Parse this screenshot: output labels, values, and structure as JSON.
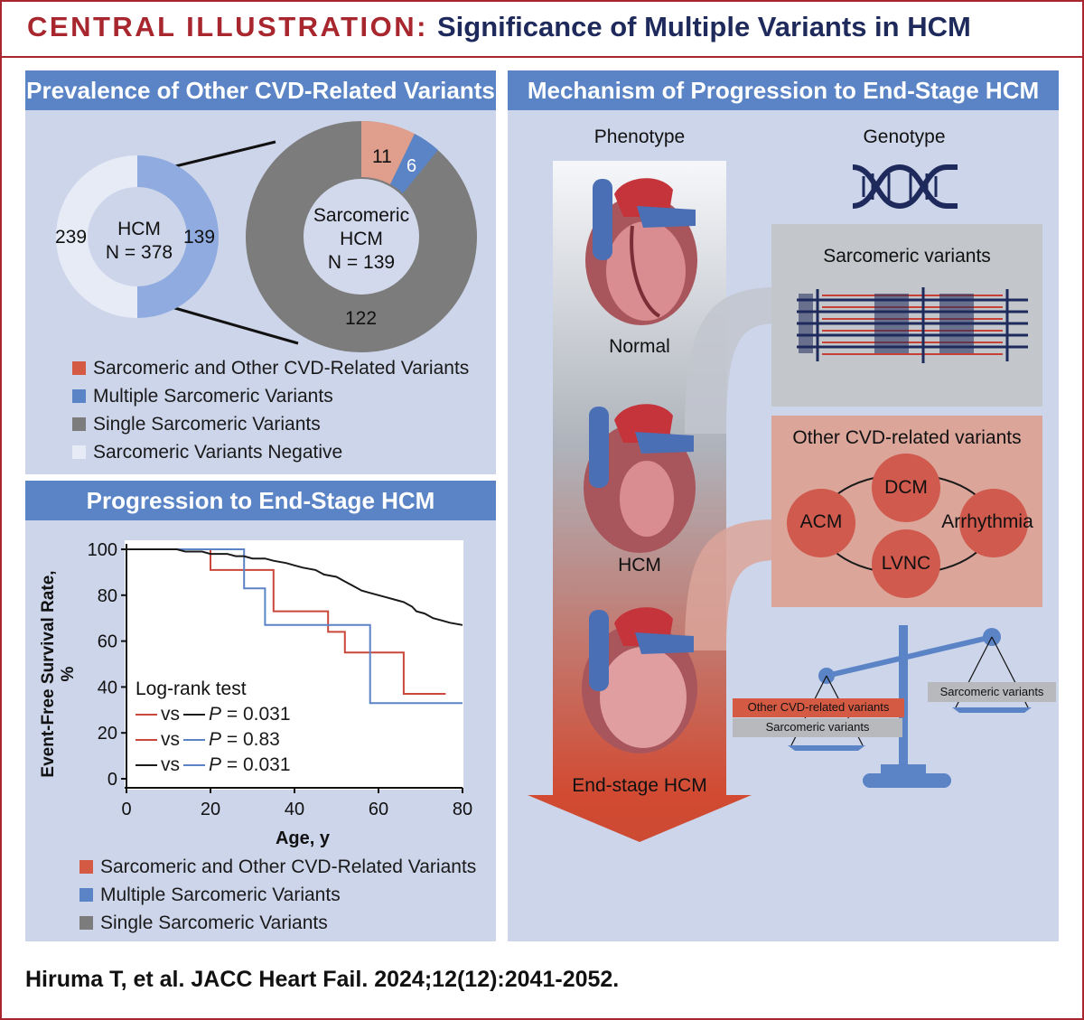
{
  "header": {
    "prefix": "CENTRAL ILLUSTRATION:",
    "title": "Significance of Multiple Variants in HCM"
  },
  "prevalence": {
    "title": "Prevalence of Other CVD-Related Variants",
    "outer_ring": {
      "center_line1": "HCM",
      "center_line2": "N = 378",
      "left_value": "239",
      "right_value": "139"
    },
    "inner_ring": {
      "center_line1": "Sarcomeric",
      "center_line2": "HCM",
      "center_line3": "N = 139",
      "value_a": "11",
      "value_b": "6",
      "value_c": "122"
    },
    "legend": [
      {
        "label": "Sarcomeric and Other CVD-Related Variants",
        "color": "#d45a43"
      },
      {
        "label": "Multiple Sarcomeric Variants",
        "color": "#5b84c6"
      },
      {
        "label": "Single Sarcomeric Variants",
        "color": "#7c7c7c"
      },
      {
        "label": "Sarcomeric Variants Negative",
        "color": "#e6ebf6"
      }
    ]
  },
  "progression": {
    "title": "Progression to End-Stage HCM",
    "ylabel": "Event-Free Survival Rate, %",
    "xlabel": "Age, y",
    "yticks": [
      "100",
      "80",
      "60",
      "40",
      "20",
      "0"
    ],
    "xticks": [
      "0",
      "20",
      "40",
      "60",
      "80"
    ],
    "test_title": "Log-rank test",
    "tests": [
      {
        "vs": "vs",
        "p_label": "P",
        "p_value": "= 0.031"
      },
      {
        "vs": "vs",
        "p_label": "P",
        "p_value": "= 0.83"
      },
      {
        "vs": "vs",
        "p_label": "P",
        "p_value": "= 0.031"
      }
    ],
    "legend": [
      {
        "label": "Sarcomeric and Other CVD-Related Variants",
        "color": "#d45a43"
      },
      {
        "label": "Multiple Sarcomeric Variants",
        "color": "#5b84c6"
      },
      {
        "label": "Single Sarcomeric Variants",
        "color": "#7c7c7c"
      }
    ]
  },
  "chart_data": {
    "type": "line",
    "xlabel": "Age, y",
    "ylabel": "Event-Free Survival Rate, %",
    "xlim": [
      0,
      80
    ],
    "ylim": [
      0,
      100
    ],
    "grid": false,
    "series": [
      {
        "name": "Sarcomeric and Other CVD-Related Variants",
        "color": "#c9473b",
        "points": [
          [
            0,
            100
          ],
          [
            20,
            100
          ],
          [
            20,
            91
          ],
          [
            35,
            91
          ],
          [
            35,
            73
          ],
          [
            48,
            73
          ],
          [
            48,
            64
          ],
          [
            52,
            64
          ],
          [
            52,
            55
          ],
          [
            66,
            55
          ],
          [
            66,
            37
          ],
          [
            76,
            37
          ]
        ]
      },
      {
        "name": "Multiple Sarcomeric Variants",
        "color": "#5b84c6",
        "points": [
          [
            0,
            100
          ],
          [
            28,
            100
          ],
          [
            28,
            83
          ],
          [
            33,
            83
          ],
          [
            33,
            67
          ],
          [
            58,
            67
          ],
          [
            58,
            33
          ],
          [
            80,
            33
          ]
        ]
      },
      {
        "name": "Single Sarcomeric Variants",
        "color": "#1a1a1a",
        "points": [
          [
            0,
            100
          ],
          [
            12,
            100
          ],
          [
            14,
            99
          ],
          [
            18,
            99
          ],
          [
            20,
            98
          ],
          [
            24,
            98
          ],
          [
            26,
            97
          ],
          [
            28,
            97
          ],
          [
            30,
            96
          ],
          [
            33,
            96
          ],
          [
            35,
            95
          ],
          [
            38,
            94
          ],
          [
            40,
            93
          ],
          [
            42,
            92
          ],
          [
            45,
            91
          ],
          [
            47,
            89
          ],
          [
            50,
            88
          ],
          [
            52,
            86
          ],
          [
            54,
            84
          ],
          [
            56,
            82
          ],
          [
            58,
            81
          ],
          [
            60,
            80
          ],
          [
            62,
            79
          ],
          [
            64,
            78
          ],
          [
            66,
            77
          ],
          [
            68,
            75
          ],
          [
            69,
            73
          ],
          [
            71,
            72
          ],
          [
            73,
            70
          ],
          [
            75,
            69
          ],
          [
            77,
            68
          ],
          [
            80,
            67
          ]
        ]
      }
    ]
  },
  "mechanism": {
    "title": "Mechanism of Progression to End-Stage HCM",
    "phenotype": "Phenotype",
    "genotype": "Genotype",
    "stages": [
      "Normal",
      "HCM",
      "End-stage HCM"
    ],
    "sarcomeric_box": {
      "title": "Sarcomeric variants"
    },
    "cvd_box": {
      "title": "Other CVD-related variants",
      "nodes": [
        "DCM",
        "ACM",
        "Arrhythmia",
        "LVNC"
      ]
    },
    "scale": {
      "left_top": "Other CVD-related variants",
      "left_bottom": "Sarcomeric variants",
      "right": "Sarcomeric variants"
    }
  },
  "citation": "Hiruma T, et al. JACC Heart Fail. 2024;12(12):2041-2052."
}
